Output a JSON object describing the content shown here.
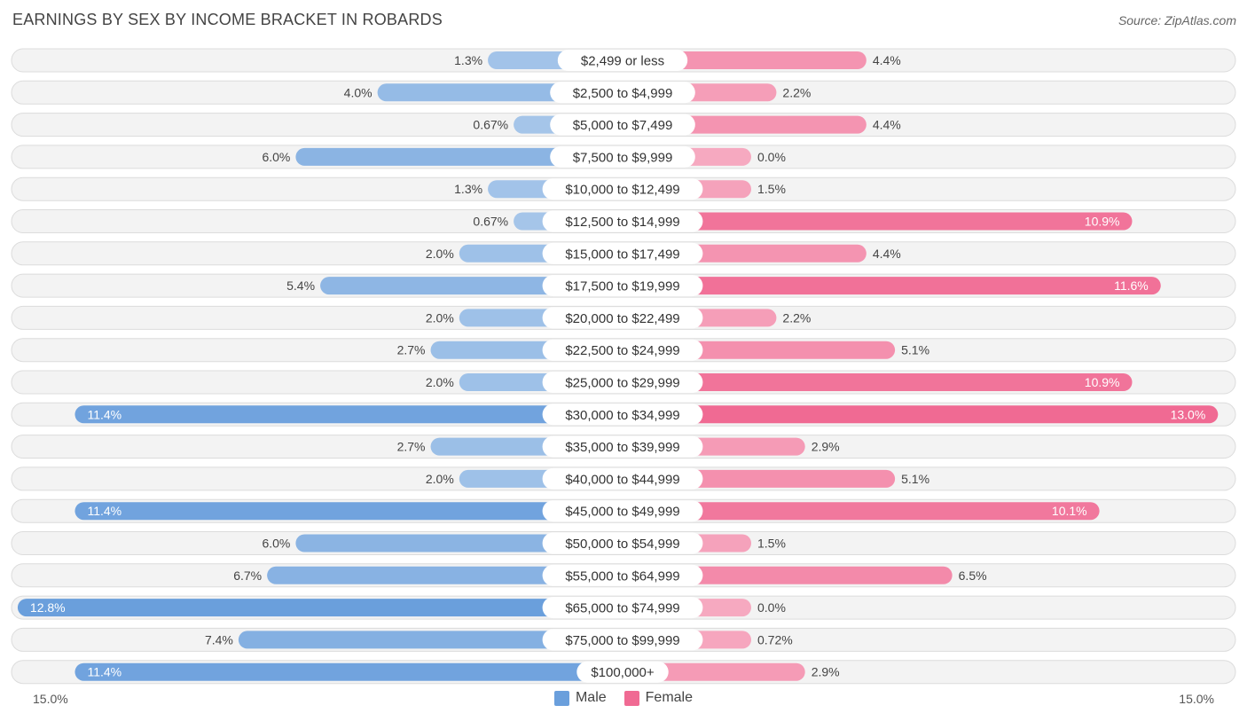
{
  "title": "EARNINGS BY SEX BY INCOME BRACKET IN ROBARDS",
  "source": "Source: ZipAtlas.com",
  "colors": {
    "male_strong": "#6a9fdc",
    "male_light": "#a8c7ea",
    "female_strong": "#f06a93",
    "female_light": "#f6a9c0"
  },
  "legend": {
    "male": "Male",
    "female": "Female"
  },
  "axis": {
    "left_label": "15.0%",
    "right_label": "15.0%"
  },
  "chart_data": {
    "type": "bar",
    "orientation": "horizontal-diverging",
    "title": "EARNINGS BY SEX BY INCOME BRACKET IN ROBARDS",
    "xlim": [
      -15.0,
      15.0
    ],
    "unit": "%",
    "categories": [
      "$2,499 or less",
      "$2,500 to $4,999",
      "$5,000 to $7,499",
      "$7,500 to $9,999",
      "$10,000 to $12,499",
      "$12,500 to $14,999",
      "$15,000 to $17,499",
      "$17,500 to $19,999",
      "$20,000 to $22,499",
      "$22,500 to $24,999",
      "$25,000 to $29,999",
      "$30,000 to $34,999",
      "$35,000 to $39,999",
      "$40,000 to $44,999",
      "$45,000 to $49,999",
      "$50,000 to $54,999",
      "$55,000 to $64,999",
      "$65,000 to $74,999",
      "$75,000 to $99,999",
      "$100,000+"
    ],
    "series": [
      {
        "name": "Male",
        "values": [
          1.3,
          4.0,
          0.67,
          6.0,
          1.3,
          0.67,
          2.0,
          5.4,
          2.0,
          2.7,
          2.0,
          11.4,
          2.7,
          2.0,
          11.4,
          6.0,
          6.7,
          12.8,
          7.4,
          11.4
        ],
        "labels": [
          "1.3%",
          "4.0%",
          "0.67%",
          "6.0%",
          "1.3%",
          "0.67%",
          "2.0%",
          "5.4%",
          "2.0%",
          "2.7%",
          "2.0%",
          "11.4%",
          "2.7%",
          "2.0%",
          "11.4%",
          "6.0%",
          "6.7%",
          "12.8%",
          "7.4%",
          "11.4%"
        ]
      },
      {
        "name": "Female",
        "values": [
          4.4,
          2.2,
          4.4,
          0.0,
          1.5,
          10.9,
          4.4,
          11.6,
          2.2,
          5.1,
          10.9,
          13.0,
          2.9,
          5.1,
          10.1,
          1.5,
          6.5,
          0.0,
          0.72,
          2.9
        ],
        "labels": [
          "4.4%",
          "2.2%",
          "4.4%",
          "0.0%",
          "1.5%",
          "10.9%",
          "4.4%",
          "11.6%",
          "2.2%",
          "5.1%",
          "10.9%",
          "13.0%",
          "2.9%",
          "5.1%",
          "10.1%",
          "1.5%",
          "6.5%",
          "0.0%",
          "0.72%",
          "2.9%"
        ]
      }
    ]
  }
}
